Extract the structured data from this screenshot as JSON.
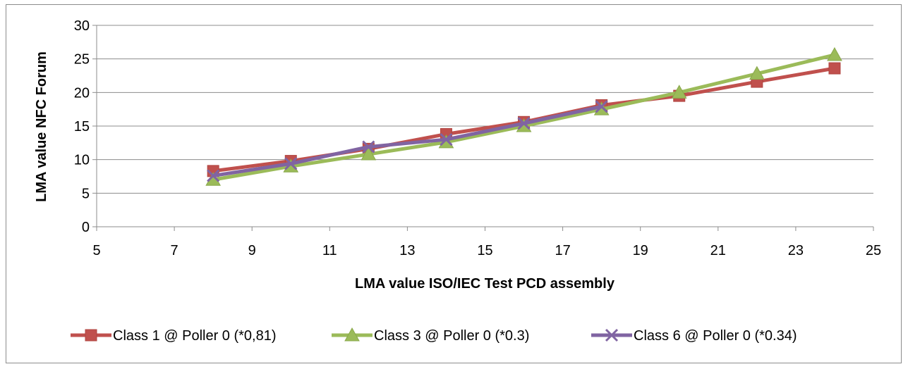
{
  "chart_data": {
    "type": "line",
    "title": "",
    "xlabel": "LMA value ISO/IEC Test PCD assembly",
    "ylabel": "LMA value NFC Forum",
    "xlim": [
      5,
      25
    ],
    "ylim": [
      0,
      30
    ],
    "x_ticks": [
      5,
      7,
      9,
      11,
      13,
      15,
      17,
      19,
      21,
      23,
      25
    ],
    "y_ticks": [
      0,
      5,
      10,
      15,
      20,
      25,
      30
    ],
    "grid": "horizontal",
    "legend_position": "bottom",
    "series": [
      {
        "name": "Class 1 @ Poller 0 (*0,81)",
        "color": "#c0504d",
        "marker": "square",
        "x": [
          8,
          10,
          12,
          14,
          16,
          18,
          20,
          22,
          24
        ],
        "y": [
          8.3,
          9.8,
          11.6,
          13.8,
          15.6,
          18.1,
          19.5,
          21.6,
          23.6
        ]
      },
      {
        "name": "Class 3 @ Poller 0 (*0.3)",
        "color": "#9bbb59",
        "marker": "triangle",
        "x": [
          8,
          10,
          12,
          14,
          16,
          18,
          20,
          22,
          24
        ],
        "y": [
          7.0,
          9.0,
          10.8,
          12.6,
          15.0,
          17.5,
          20.0,
          22.8,
          25.6
        ]
      },
      {
        "name": "Class 6 @ Poller 0 (*0.34)",
        "color": "#8064a2",
        "marker": "x",
        "x": [
          8,
          10,
          12,
          14,
          16,
          18
        ],
        "y": [
          7.6,
          9.4,
          11.9,
          13.0,
          15.4,
          17.9
        ]
      }
    ]
  }
}
